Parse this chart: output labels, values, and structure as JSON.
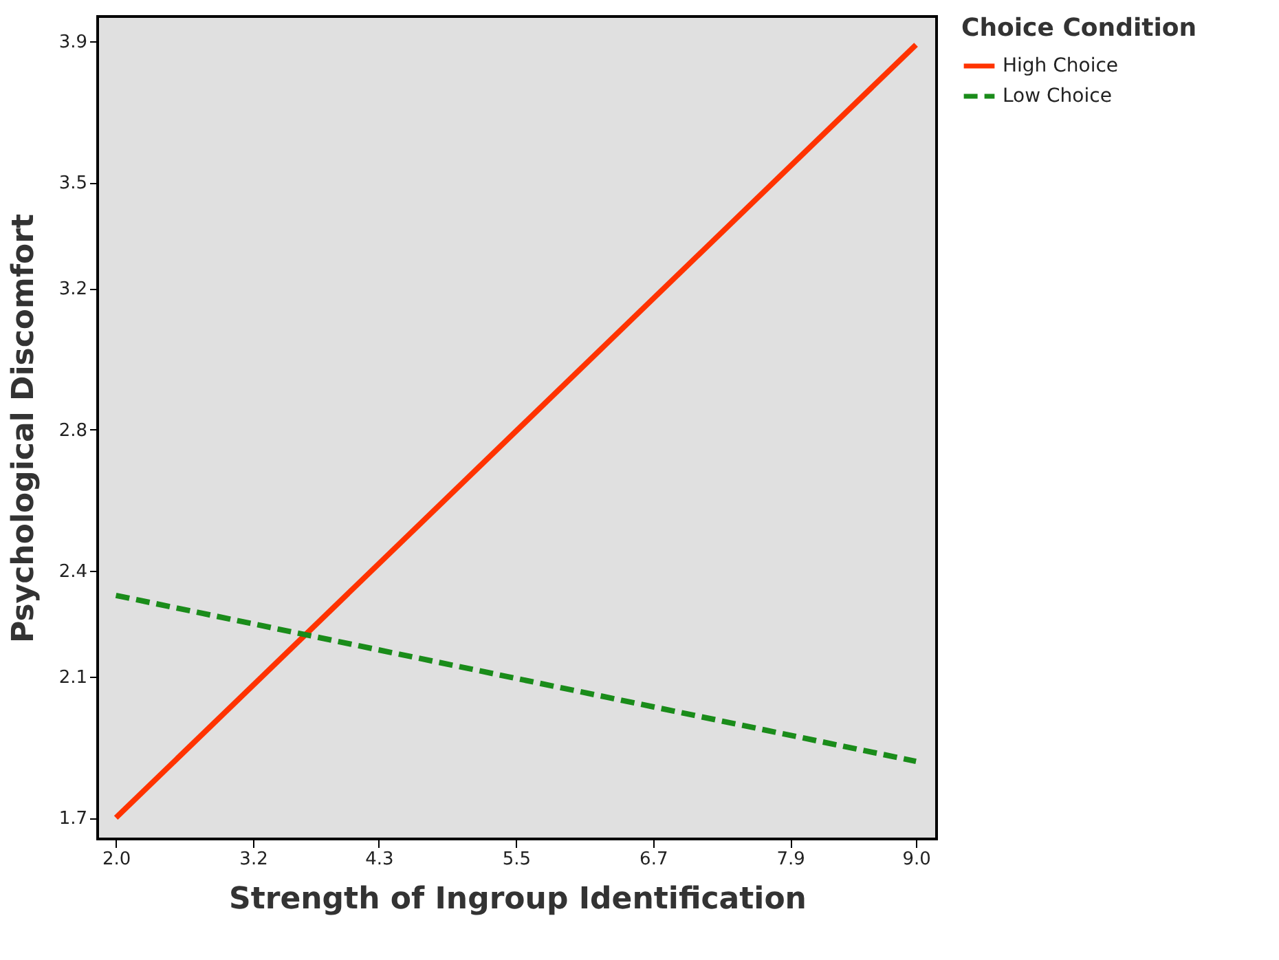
{
  "chart_data": {
    "type": "line",
    "xlabel": "Strength of Ingroup Identification",
    "ylabel": "Psychological Discomfort",
    "legend_title": "Choice Condition",
    "xlim": [
      1.84,
      9.18
    ],
    "ylim": [
      1.64,
      3.97
    ],
    "xticks": [
      {
        "value": 2,
        "label": "2.0"
      },
      3.2,
      4.3,
      5.5,
      6.7,
      7.9,
      {
        "value": 9,
        "label": "9.0"
      }
    ],
    "yticks": [
      1.7,
      2.1,
      2.4,
      2.8,
      3.2,
      3.5,
      3.9
    ],
    "x": [
      2,
      9
    ],
    "grid": false,
    "legend": "top right",
    "marker": "none",
    "series": [
      {
        "name": "High Choice",
        "color": "#ff3300",
        "line_style": "solid",
        "values": [
          1.7,
          3.89
        ]
      },
      {
        "name": "Low Choice",
        "color": "#1a8c1a",
        "line_style": "dashed",
        "values": [
          2.33,
          1.86
        ]
      }
    ]
  }
}
